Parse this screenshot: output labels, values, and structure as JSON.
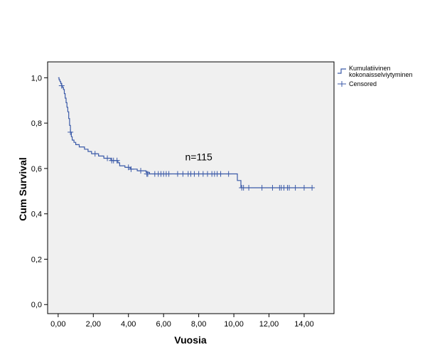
{
  "chart_data": {
    "type": "line",
    "subtype": "kaplan-meier-step",
    "xlabel": "Vuosia",
    "ylabel": "Cum Survival",
    "xlim": [
      -0.6,
      15.7
    ],
    "ylim": [
      -0.04,
      1.07
    ],
    "x_ticks": [
      {
        "value": 0,
        "label": "0,00"
      },
      {
        "value": 2,
        "label": "2,00"
      },
      {
        "value": 4,
        "label": "4,00"
      },
      {
        "value": 6,
        "label": "6,00"
      },
      {
        "value": 8,
        "label": "8,00"
      },
      {
        "value": 10,
        "label": "10,00"
      },
      {
        "value": 12,
        "label": "12,00"
      },
      {
        "value": 14,
        "label": "14,00"
      }
    ],
    "y_ticks": [
      {
        "value": 0.0,
        "label": "0,0"
      },
      {
        "value": 0.2,
        "label": "0,2"
      },
      {
        "value": 0.4,
        "label": "0,4"
      },
      {
        "value": 0.6,
        "label": "0,6"
      },
      {
        "value": 0.8,
        "label": "0,8"
      },
      {
        "value": 1.0,
        "label": "1,0"
      }
    ],
    "grid": false,
    "plot_background": "#f0f0f0",
    "line_color": "#3b5aa8",
    "legend": {
      "placement": "right-top",
      "entries": [
        {
          "label_lines": [
            "Kumulatiivinen",
            "kokonaisselviytyminen"
          ],
          "symbol": "step"
        },
        {
          "label_lines": [
            "Censored"
          ],
          "symbol": "cross"
        }
      ]
    },
    "annotation": {
      "text": "n=115",
      "x": 8.0,
      "y": 0.635
    },
    "series": [
      {
        "name": "Kumulatiivinen kokonaisselviytyminen",
        "step_points": [
          [
            0.0,
            1.0
          ],
          [
            0.05,
            0.991
          ],
          [
            0.1,
            0.983
          ],
          [
            0.15,
            0.974
          ],
          [
            0.2,
            0.965
          ],
          [
            0.25,
            0.957
          ],
          [
            0.3,
            0.948
          ],
          [
            0.35,
            0.93
          ],
          [
            0.4,
            0.91
          ],
          [
            0.45,
            0.89
          ],
          [
            0.5,
            0.87
          ],
          [
            0.55,
            0.85
          ],
          [
            0.6,
            0.82
          ],
          [
            0.65,
            0.79
          ],
          [
            0.7,
            0.76
          ],
          [
            0.75,
            0.74
          ],
          [
            0.8,
            0.725
          ],
          [
            0.9,
            0.715
          ],
          [
            1.0,
            0.705
          ],
          [
            1.2,
            0.695
          ],
          [
            1.5,
            0.685
          ],
          [
            1.7,
            0.675
          ],
          [
            1.9,
            0.665
          ],
          [
            2.3,
            0.655
          ],
          [
            2.6,
            0.645
          ],
          [
            3.0,
            0.635
          ],
          [
            3.4,
            0.625
          ],
          [
            3.5,
            0.612
          ],
          [
            3.8,
            0.605
          ],
          [
            4.1,
            0.597
          ],
          [
            4.5,
            0.59
          ],
          [
            5.0,
            0.583
          ],
          [
            5.2,
            0.576
          ],
          [
            10.2,
            0.547
          ],
          [
            10.4,
            0.515
          ],
          [
            14.5,
            0.515
          ]
        ],
        "censored": [
          [
            0.2,
            0.965
          ],
          [
            0.7,
            0.76
          ],
          [
            2.1,
            0.665
          ],
          [
            2.8,
            0.645
          ],
          [
            3.05,
            0.635
          ],
          [
            3.15,
            0.635
          ],
          [
            3.35,
            0.635
          ],
          [
            4.0,
            0.605
          ],
          [
            4.15,
            0.597
          ],
          [
            4.7,
            0.59
          ],
          [
            5.05,
            0.576
          ],
          [
            5.1,
            0.576
          ],
          [
            5.5,
            0.576
          ],
          [
            5.7,
            0.576
          ],
          [
            5.85,
            0.576
          ],
          [
            6.0,
            0.576
          ],
          [
            6.15,
            0.576
          ],
          [
            6.3,
            0.576
          ],
          [
            6.8,
            0.576
          ],
          [
            7.1,
            0.576
          ],
          [
            7.4,
            0.576
          ],
          [
            7.55,
            0.576
          ],
          [
            7.75,
            0.576
          ],
          [
            8.0,
            0.576
          ],
          [
            8.25,
            0.576
          ],
          [
            8.5,
            0.576
          ],
          [
            8.75,
            0.576
          ],
          [
            8.9,
            0.576
          ],
          [
            9.05,
            0.576
          ],
          [
            9.25,
            0.576
          ],
          [
            9.7,
            0.576
          ],
          [
            10.45,
            0.515
          ],
          [
            10.55,
            0.515
          ],
          [
            10.85,
            0.515
          ],
          [
            11.6,
            0.515
          ],
          [
            12.2,
            0.515
          ],
          [
            12.6,
            0.515
          ],
          [
            12.7,
            0.515
          ],
          [
            12.85,
            0.515
          ],
          [
            13.05,
            0.515
          ],
          [
            13.15,
            0.515
          ],
          [
            13.5,
            0.515
          ],
          [
            14.0,
            0.515
          ],
          [
            14.45,
            0.515
          ]
        ]
      }
    ]
  }
}
